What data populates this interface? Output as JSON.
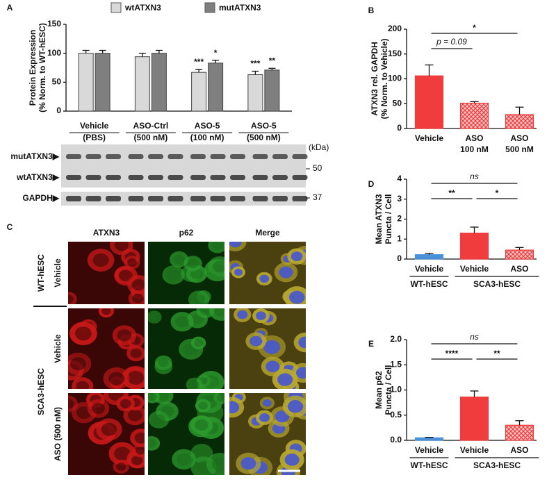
{
  "panel_labels": [
    "A",
    "B",
    "C",
    "D",
    "E"
  ],
  "chart_data": [
    {
      "type": "grouped-bar",
      "ylabel": [
        "Protein Expression",
        "(% Norm. to WT-hESC)"
      ],
      "categories": [
        "Vehicle",
        "ASO-Ctrl",
        "ASO-5",
        "ASO-5"
      ],
      "category_sublabels": [
        "(PBS)",
        "(500 nM)",
        "(100 nM)",
        "(500 nM)"
      ],
      "series": [
        {
          "name": "wtATXN3",
          "color": "#d9d9d9",
          "values": [
            100,
            94,
            67,
            63
          ],
          "errors": [
            5,
            6,
            5,
            6
          ],
          "significance": [
            null,
            null,
            "***",
            "***"
          ]
        },
        {
          "name": "mutATXN3",
          "color": "#7f7f7f",
          "values": [
            100,
            100,
            83,
            71
          ],
          "errors": [
            5,
            5,
            5,
            3
          ],
          "significance": [
            null,
            null,
            "*",
            "**"
          ]
        }
      ],
      "ylim": [
        0,
        150
      ],
      "yticks": [
        0,
        50,
        100,
        150
      ],
      "blot": {
        "bands": [
          "mutATXN3▶",
          "wtATXN3▶",
          "GAPDH▶"
        ],
        "unit": "(kDa)",
        "markers": [
          50,
          37
        ]
      }
    },
    {
      "type": "bar",
      "ylabel": [
        "ATXN3 rel. GAPDH",
        "(% Norm. to Vehicle)"
      ],
      "categories": [
        "Vehicle",
        "ASO",
        "ASO"
      ],
      "category_sublabels": [
        null,
        "100 nM",
        "500 nM"
      ],
      "values": [
        106,
        51,
        28
      ],
      "errors": [
        22,
        3,
        15
      ],
      "colors": [
        "#f03c3c",
        "#f03c3c",
        "#f03c3c"
      ],
      "hatched": [
        false,
        true,
        true
      ],
      "annotations": [
        "p = 0.09",
        "*"
      ],
      "ylim": [
        0,
        200
      ],
      "yticks": [
        0,
        50,
        100,
        150,
        200
      ]
    },
    {
      "type": "bar",
      "ylabel": [
        "Mean ATXN3",
        "Puncta / Cell"
      ],
      "categories": [
        "Vehicle",
        "Vehicle",
        "ASO"
      ],
      "groups": [
        "WT-hESC",
        "SCA3-hESC"
      ],
      "values": [
        0.22,
        1.3,
        0.45
      ],
      "errors": [
        0.07,
        0.3,
        0.13
      ],
      "colors": [
        "#4a90d9",
        "#f03c3c",
        "#f03c3c"
      ],
      "hatched": [
        false,
        false,
        true
      ],
      "annotations": [
        "**",
        "*",
        "ns"
      ],
      "ylim": [
        0,
        4
      ],
      "yticks": [
        0,
        1,
        2,
        3,
        4
      ]
    },
    {
      "type": "bar",
      "ylabel": [
        "Mean p62",
        "Puncta / Cell"
      ],
      "categories": [
        "Vehicle",
        "Vehicle",
        "ASO"
      ],
      "groups": [
        "WT-hESC",
        "SCA3-hESC"
      ],
      "values": [
        0.05,
        0.86,
        0.3
      ],
      "errors": [
        0.01,
        0.12,
        0.09
      ],
      "colors": [
        "#4a90d9",
        "#f03c3c",
        "#f03c3c"
      ],
      "hatched": [
        false,
        false,
        true
      ],
      "annotations": [
        "****",
        "**",
        "ns"
      ],
      "ylim": [
        0,
        2
      ],
      "yticks": [
        {
          "value": 0,
          "label": "0.0"
        },
        0.5,
        {
          "value": 1,
          "label": "1.0"
        },
        1.5,
        {
          "value": 2,
          "label": "2.0"
        }
      ]
    }
  ],
  "microscopy": {
    "columns": [
      "ATXN3",
      "p62",
      "Merge"
    ],
    "groups": [
      "WT-hESC",
      "SCA3-hESC"
    ],
    "rows": [
      "Vehicle",
      "Vehicle",
      "ASO (500 nM)"
    ]
  }
}
